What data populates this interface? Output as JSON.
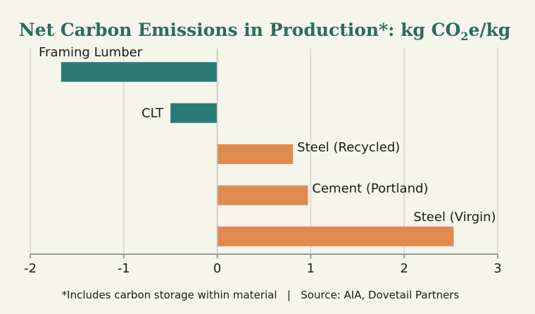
{
  "chart_data": {
    "type": "bar",
    "orientation": "horizontal",
    "title": {
      "prefix": "Net Carbon Emissions in Production*: kg CO",
      "subscript": "2",
      "suffix": "e/kg"
    },
    "categories": [
      "Framing Lumber",
      "CLT",
      "Steel (Recycled)",
      "Cement (Portland)",
      "Steel (Virgin)"
    ],
    "values": [
      -1.67,
      -0.5,
      0.81,
      0.97,
      2.53
    ],
    "xlim": [
      -2,
      3
    ],
    "xticks": [
      -2,
      -1,
      0,
      1,
      2,
      3
    ],
    "xtick_labels": [
      "-2",
      "-1",
      "0",
      "1",
      "2",
      "3"
    ],
    "grid": true,
    "colors": {
      "negative": "#2a7a78",
      "positive": "#e08a50",
      "title": "#2e6b5c"
    },
    "footnote": "*Includes carbon storage within material   |   Source: AIA, Dovetail Partners"
  }
}
